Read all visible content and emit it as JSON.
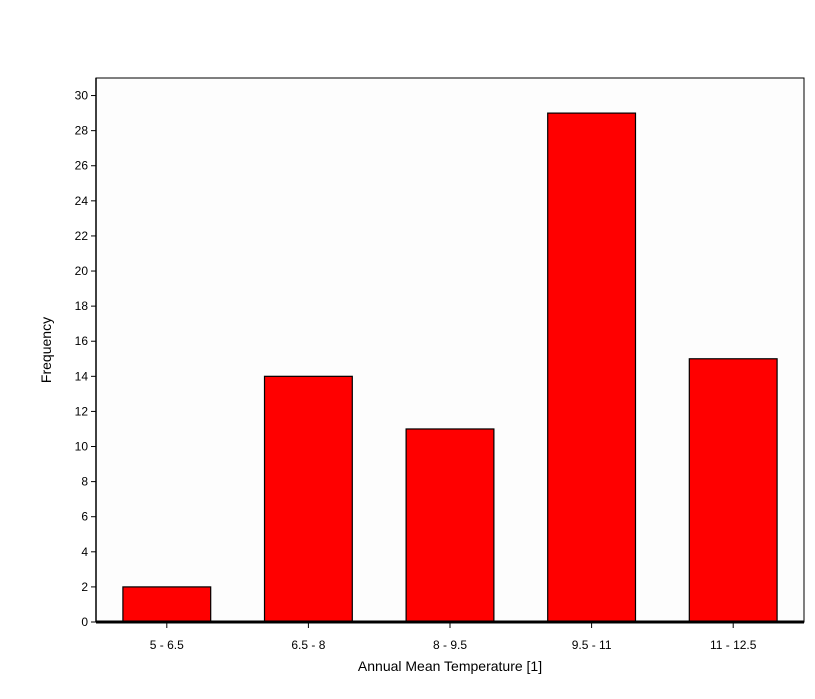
{
  "chart_data": {
    "type": "bar",
    "categories": [
      "5 - 6.5",
      "6.5 - 8",
      "8 - 9.5",
      "9.5 - 11",
      "11 - 12.5"
    ],
    "values": [
      2,
      14,
      11,
      29,
      15
    ],
    "title": "",
    "xlabel": "Annual Mean Temperature [1]",
    "ylabel": "Frequency",
    "ylim": [
      0,
      31
    ],
    "yticks": [
      0,
      2,
      4,
      6,
      8,
      10,
      12,
      14,
      16,
      18,
      20,
      22,
      24,
      26,
      28,
      30
    ],
    "grid": false,
    "legend": "none",
    "colors": {
      "bar_fill": "#ff0000",
      "bar_stroke": "#000000",
      "plot_background": "#fdfdfd",
      "axis": "#000000"
    }
  }
}
